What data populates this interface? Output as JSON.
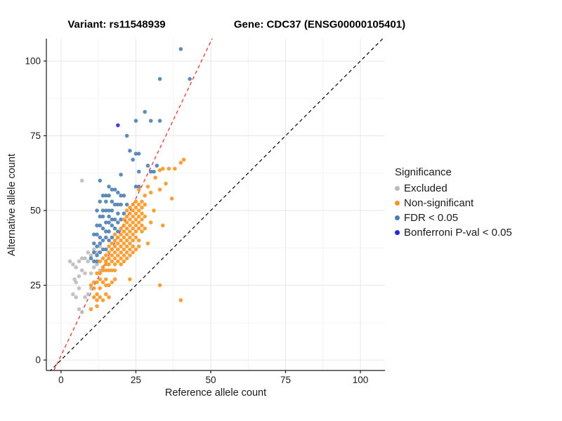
{
  "titles": {
    "variant": "Variant: rs11548939",
    "gene": "Gene: CDC37 (ENSG00000105401)"
  },
  "chart_data": {
    "type": "scatter",
    "xlabel": "Reference allele count",
    "ylabel": "Alternative allele count",
    "xlim": [
      -4.9,
      108.2
    ],
    "ylim": [
      -3.5,
      107.5
    ],
    "xticks": [
      0,
      25,
      50,
      75,
      100
    ],
    "yticks": [
      0,
      25,
      50,
      75,
      100
    ],
    "minor_ticks": [
      12.5,
      37.5,
      62.5,
      87.5
    ],
    "grid": {
      "major_color": "#e7e7e7",
      "minor_color": "#f3f3f3"
    },
    "axis_color": "#1a1a1a",
    "lines": [
      {
        "name": "identity-line",
        "slope": 1,
        "intercept": 0,
        "color": "#000000",
        "dash": "5,4"
      },
      {
        "name": "expected-ratio-line",
        "slope": 2.1,
        "intercept": 1.5,
        "color": "#e8241c",
        "dash": "5,4"
      }
    ],
    "legend": {
      "title": "Significance",
      "position": "right",
      "entries": [
        {
          "label": "Excluded",
          "color": "#bbbbbb"
        },
        {
          "label": "Non-significant",
          "color": "#f79420"
        },
        {
          "label": "FDR < 0.05",
          "color": "#4a7cb0"
        },
        {
          "label": "Bonferroni P-val < 0.05",
          "color": "#2626de"
        }
      ]
    },
    "series": [
      {
        "name": "Excluded",
        "color": "#bbbbbb",
        "points": [
          [
            7,
            60
          ],
          [
            3,
            33
          ],
          [
            4,
            32
          ],
          [
            4.5,
            27
          ],
          [
            5,
            31
          ],
          [
            5,
            26
          ],
          [
            5,
            21
          ],
          [
            6,
            33
          ],
          [
            6,
            28
          ],
          [
            6,
            17
          ],
          [
            7,
            34
          ],
          [
            7,
            30
          ],
          [
            7,
            16
          ],
          [
            8,
            34
          ],
          [
            8,
            29
          ],
          [
            8,
            21
          ],
          [
            9,
            36
          ],
          [
            9,
            33
          ],
          [
            9,
            22
          ],
          [
            10,
            35
          ],
          [
            10,
            29
          ],
          [
            10,
            24
          ],
          [
            11,
            37
          ],
          [
            11,
            31
          ],
          [
            12,
            36
          ],
          [
            12,
            32
          ],
          [
            13,
            38
          ],
          [
            13,
            30
          ],
          [
            4,
            22
          ],
          [
            6,
            24
          ]
        ]
      },
      {
        "name": "FDR < 0.05",
        "color": "#4a7cb0",
        "points": [
          [
            40,
            104
          ],
          [
            33,
            94
          ],
          [
            43,
            94
          ],
          [
            28,
            83
          ],
          [
            25,
            80
          ],
          [
            30,
            80
          ],
          [
            33,
            80
          ],
          [
            22,
            75
          ],
          [
            23,
            70
          ],
          [
            25,
            69
          ],
          [
            26,
            69
          ],
          [
            24,
            67
          ],
          [
            29,
            65
          ],
          [
            32,
            65
          ],
          [
            26,
            63
          ],
          [
            30,
            63
          ],
          [
            31,
            63
          ],
          [
            20,
            62
          ],
          [
            13,
            60
          ],
          [
            25,
            58
          ],
          [
            16,
            58
          ],
          [
            17,
            57
          ],
          [
            18,
            57
          ],
          [
            26,
            58
          ],
          [
            19,
            56
          ],
          [
            14,
            55
          ],
          [
            15,
            55
          ],
          [
            16,
            55
          ],
          [
            20,
            55
          ],
          [
            21,
            55
          ],
          [
            13,
            53
          ],
          [
            15,
            53
          ],
          [
            17,
            53
          ],
          [
            18,
            52
          ],
          [
            19,
            52
          ],
          [
            20,
            52
          ],
          [
            22,
            52
          ],
          [
            12,
            50
          ],
          [
            14,
            50
          ],
          [
            15,
            50
          ],
          [
            16,
            50
          ],
          [
            17,
            50
          ],
          [
            19,
            49
          ],
          [
            21,
            49
          ],
          [
            13,
            48
          ],
          [
            14,
            48
          ],
          [
            16,
            48
          ],
          [
            17,
            47
          ],
          [
            18,
            47
          ],
          [
            20,
            47
          ],
          [
            15,
            46
          ],
          [
            16,
            46
          ],
          [
            19,
            46
          ],
          [
            12,
            45
          ],
          [
            13,
            45
          ],
          [
            17,
            45
          ],
          [
            14,
            44
          ],
          [
            18,
            44
          ],
          [
            15,
            43
          ],
          [
            16,
            43
          ],
          [
            19,
            43
          ],
          [
            11,
            42
          ],
          [
            12,
            42
          ],
          [
            13,
            41
          ],
          [
            15,
            41
          ],
          [
            17,
            41
          ],
          [
            14,
            40
          ],
          [
            16,
            40
          ],
          [
            11,
            39
          ],
          [
            13,
            39
          ],
          [
            12,
            38
          ],
          [
            14,
            37
          ],
          [
            15,
            37
          ],
          [
            11,
            36
          ],
          [
            13,
            36
          ],
          [
            12,
            35
          ],
          [
            10,
            34
          ],
          [
            11,
            33
          ],
          [
            12,
            33
          ]
        ]
      },
      {
        "name": "Non-significant",
        "color": "#f79420",
        "points": [
          [
            41,
            67
          ],
          [
            40,
            66
          ],
          [
            34,
            64
          ],
          [
            36,
            64
          ],
          [
            38,
            64
          ],
          [
            33,
            63.5
          ],
          [
            31.5,
            61
          ],
          [
            35,
            59
          ],
          [
            29,
            58
          ],
          [
            33,
            57
          ],
          [
            26,
            57
          ],
          [
            30,
            56
          ],
          [
            28,
            55
          ],
          [
            37,
            54
          ],
          [
            27,
            53
          ],
          [
            25,
            53
          ],
          [
            28,
            52
          ],
          [
            26,
            52
          ],
          [
            24,
            52
          ],
          [
            27,
            51
          ],
          [
            25,
            51
          ],
          [
            23,
            51
          ],
          [
            31,
            50
          ],
          [
            26,
            50
          ],
          [
            24,
            50
          ],
          [
            22,
            50
          ],
          [
            27,
            49
          ],
          [
            25,
            49
          ],
          [
            23,
            49
          ],
          [
            28,
            48
          ],
          [
            26,
            48
          ],
          [
            24,
            48
          ],
          [
            22,
            48
          ],
          [
            27,
            47
          ],
          [
            25,
            47
          ],
          [
            23,
            47
          ],
          [
            21,
            47
          ],
          [
            30,
            46
          ],
          [
            26,
            46
          ],
          [
            24,
            46
          ],
          [
            22,
            46
          ],
          [
            34,
            45
          ],
          [
            27,
            45
          ],
          [
            25,
            45
          ],
          [
            23,
            45
          ],
          [
            21,
            45
          ],
          [
            28,
            44
          ],
          [
            26,
            44
          ],
          [
            24,
            44
          ],
          [
            22,
            44
          ],
          [
            20,
            44
          ],
          [
            27,
            43
          ],
          [
            25,
            43
          ],
          [
            23,
            43
          ],
          [
            21,
            43
          ],
          [
            24,
            42
          ],
          [
            22,
            42
          ],
          [
            20,
            42
          ],
          [
            18,
            42
          ],
          [
            25,
            41
          ],
          [
            23,
            41
          ],
          [
            21,
            41
          ],
          [
            19,
            41
          ],
          [
            26,
            40
          ],
          [
            24,
            40
          ],
          [
            22,
            40
          ],
          [
            20,
            40
          ],
          [
            18,
            40
          ],
          [
            29,
            39
          ],
          [
            23,
            39
          ],
          [
            21,
            39
          ],
          [
            19,
            39
          ],
          [
            17,
            39
          ],
          [
            26,
            38
          ],
          [
            24,
            38
          ],
          [
            22,
            38
          ],
          [
            20,
            38
          ],
          [
            18,
            38
          ],
          [
            16,
            38
          ],
          [
            25,
            37
          ],
          [
            23,
            37
          ],
          [
            21,
            37
          ],
          [
            19,
            37
          ],
          [
            17,
            37
          ],
          [
            24,
            36
          ],
          [
            22,
            36
          ],
          [
            20,
            36
          ],
          [
            18,
            36
          ],
          [
            16,
            36
          ],
          [
            23,
            35
          ],
          [
            21,
            35
          ],
          [
            19,
            35
          ],
          [
            17,
            35
          ],
          [
            15,
            35
          ],
          [
            22,
            34
          ],
          [
            20,
            34
          ],
          [
            18,
            34
          ],
          [
            16,
            34
          ],
          [
            14,
            34
          ],
          [
            21,
            33
          ],
          [
            19,
            33
          ],
          [
            17,
            33
          ],
          [
            15,
            33
          ],
          [
            13,
            33
          ],
          [
            20,
            32
          ],
          [
            18,
            32
          ],
          [
            16,
            32
          ],
          [
            15,
            32
          ],
          [
            14,
            31
          ],
          [
            18,
            30
          ],
          [
            17,
            30
          ],
          [
            16,
            30
          ],
          [
            15,
            30
          ],
          [
            14,
            30
          ],
          [
            13,
            29
          ],
          [
            12,
            29
          ],
          [
            23,
            27
          ],
          [
            18,
            27
          ],
          [
            15,
            27
          ],
          [
            13,
            27
          ],
          [
            17,
            26
          ],
          [
            14,
            26
          ],
          [
            12,
            26
          ],
          [
            11,
            26
          ],
          [
            16,
            25
          ],
          [
            15,
            25
          ],
          [
            10,
            25
          ],
          [
            33,
            25
          ],
          [
            13,
            24
          ],
          [
            11,
            24
          ],
          [
            15,
            22
          ],
          [
            12,
            22
          ],
          [
            16,
            21
          ],
          [
            13,
            21
          ],
          [
            11,
            21
          ],
          [
            14,
            20
          ],
          [
            12,
            20
          ],
          [
            40,
            20
          ],
          [
            12,
            18
          ],
          [
            10,
            17
          ]
        ]
      },
      {
        "name": "Bonferroni P-val < 0.05",
        "color": "#2626de",
        "points": [
          [
            19,
            78.5
          ]
        ]
      }
    ]
  }
}
